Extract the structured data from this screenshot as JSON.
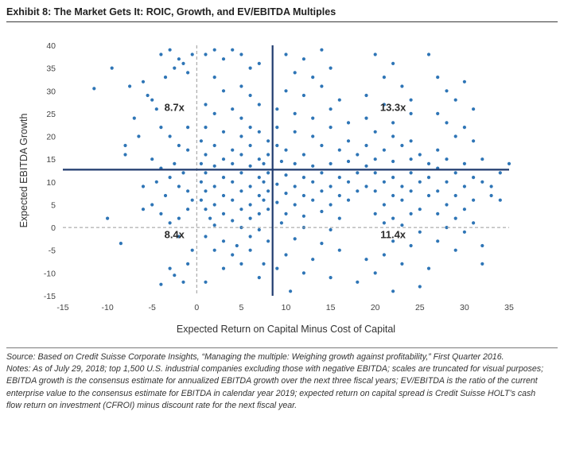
{
  "header": {
    "title": "Exhibit 8: The Market Gets It: ROIC, Growth, and EV/EBITDA Multiples"
  },
  "chart_data": {
    "type": "scatter",
    "title": "Exhibit 8: The Market Gets It: ROIC, Growth, and EV/EBITDA Multiples",
    "xlabel": "Expected Return on Capital Minus Cost of Capital",
    "ylabel": "Expected EBITDA Growth",
    "xlim": [
      -15,
      35
    ],
    "ylim": [
      -15,
      40
    ],
    "x_ticks": [
      "-15",
      "-10",
      "-5",
      "0",
      "5",
      "10",
      "15",
      "20",
      "25",
      "30",
      "35"
    ],
    "y_ticks": [
      "40",
      "35",
      "30",
      "25",
      "20",
      "15",
      "10",
      "5",
      "0",
      "-5",
      "-10",
      "-15"
    ],
    "grid": false,
    "point_color": "#2e75b6",
    "line_color": "#1f3a6e",
    "median_x": 8.5,
    "median_y": 12.7,
    "zero_reference_lines": true,
    "quadrants": [
      {
        "label": "8.7x",
        "x": -2.5,
        "y": 26.5
      },
      {
        "label": "13.3x",
        "x": 22,
        "y": 26.5
      },
      {
        "label": "8.4x",
        "x": -2.5,
        "y": -1.5
      },
      {
        "label": "11.4x",
        "x": 22,
        "y": -1.5
      }
    ],
    "series": [
      {
        "name": "U.S. industrial companies",
        "points": [
          [
            -11.5,
            30.5
          ],
          [
            -9.5,
            35
          ],
          [
            -10,
            2
          ],
          [
            -8,
            18
          ],
          [
            -8,
            16
          ],
          [
            -7.5,
            31
          ],
          [
            -7,
            24
          ],
          [
            -6.5,
            20
          ],
          [
            -6,
            32
          ],
          [
            -5.5,
            29
          ],
          [
            -5,
            28
          ],
          [
            -4.5,
            26
          ],
          [
            -4,
            38
          ],
          [
            -3.5,
            33
          ],
          [
            -3,
            39
          ],
          [
            -2.5,
            35
          ],
          [
            -2,
            37
          ],
          [
            -1.5,
            36
          ],
          [
            -1,
            34
          ],
          [
            -0.5,
            38
          ],
          [
            -4,
            22
          ],
          [
            -3,
            20
          ],
          [
            -2,
            18
          ],
          [
            -1,
            17
          ],
          [
            -5,
            15
          ],
          [
            -4,
            13
          ],
          [
            -3,
            11
          ],
          [
            -2,
            9
          ],
          [
            -1,
            8
          ],
          [
            -5,
            5
          ],
          [
            -4,
            3
          ],
          [
            -3,
            1
          ],
          [
            -2,
            2
          ],
          [
            -1,
            4
          ],
          [
            -0.5,
            6
          ],
          [
            -6,
            9
          ],
          [
            -6,
            4
          ],
          [
            -3,
            -9
          ],
          [
            -2.5,
            -10.5
          ],
          [
            -1,
            -8
          ],
          [
            -0.5,
            -5
          ],
          [
            -8.5,
            -3.5
          ],
          [
            -1.5,
            -12
          ],
          [
            -4,
            -12.5
          ],
          [
            -2,
            -2
          ],
          [
            -1.5,
            12
          ],
          [
            -3.5,
            7
          ],
          [
            -4.5,
            10
          ],
          [
            -2.5,
            14
          ],
          [
            -1,
            22
          ],
          [
            1,
            38
          ],
          [
            2,
            39
          ],
          [
            3,
            37
          ],
          [
            4,
            39
          ],
          [
            5,
            38
          ],
          [
            6,
            35
          ],
          [
            7,
            36
          ],
          [
            2,
            33
          ],
          [
            3,
            30
          ],
          [
            5,
            31
          ],
          [
            6,
            29
          ],
          [
            1,
            27
          ],
          [
            2,
            25
          ],
          [
            4,
            26
          ],
          [
            5,
            24
          ],
          [
            7,
            27
          ],
          [
            1,
            22
          ],
          [
            3,
            21
          ],
          [
            5,
            20
          ],
          [
            6,
            22
          ],
          [
            7,
            21
          ],
          [
            0.5,
            19
          ],
          [
            2,
            18
          ],
          [
            4,
            17
          ],
          [
            6,
            18
          ],
          [
            8,
            19
          ],
          [
            1,
            16
          ],
          [
            3,
            15
          ],
          [
            5,
            16
          ],
          [
            7,
            15
          ],
          [
            8,
            16
          ],
          [
            0.5,
            14
          ],
          [
            2,
            13.5
          ],
          [
            4,
            14
          ],
          [
            6,
            13.5
          ],
          [
            7.5,
            14
          ],
          [
            1,
            12
          ],
          [
            3,
            11
          ],
          [
            5,
            12
          ],
          [
            7,
            11
          ],
          [
            8,
            12
          ],
          [
            0.5,
            10
          ],
          [
            2,
            9
          ],
          [
            4,
            10
          ],
          [
            6,
            9
          ],
          [
            7.5,
            10
          ],
          [
            1,
            8
          ],
          [
            3,
            7
          ],
          [
            5,
            8
          ],
          [
            7,
            7
          ],
          [
            8,
            8
          ],
          [
            0.5,
            6
          ],
          [
            2,
            5
          ],
          [
            4,
            6
          ],
          [
            6,
            5
          ],
          [
            7.5,
            6
          ],
          [
            1,
            4
          ],
          [
            3,
            3
          ],
          [
            5,
            4
          ],
          [
            7,
            3
          ],
          [
            8,
            4
          ],
          [
            1.5,
            2
          ],
          [
            4,
            1.5
          ],
          [
            6,
            2
          ],
          [
            2,
            0.5
          ],
          [
            5,
            0
          ],
          [
            7,
            -0.5
          ],
          [
            1,
            -2
          ],
          [
            3,
            -3
          ],
          [
            6,
            -2
          ],
          [
            2,
            -5
          ],
          [
            4,
            -6
          ],
          [
            5,
            -8
          ],
          [
            3,
            -9
          ],
          [
            7,
            -11
          ],
          [
            1,
            -12
          ],
          [
            6,
            -5
          ],
          [
            8,
            -3
          ],
          [
            7.5,
            -8
          ],
          [
            4.5,
            -4
          ],
          [
            10,
            38
          ],
          [
            12,
            37
          ],
          [
            14,
            39
          ],
          [
            11,
            34
          ],
          [
            13,
            33
          ],
          [
            15,
            35
          ],
          [
            10,
            30
          ],
          [
            12,
            29
          ],
          [
            14,
            31
          ],
          [
            16,
            28
          ],
          [
            9,
            26
          ],
          [
            11,
            25
          ],
          [
            13,
            24
          ],
          [
            15,
            26
          ],
          [
            17,
            23
          ],
          [
            9,
            22
          ],
          [
            11,
            21
          ],
          [
            13,
            20
          ],
          [
            15,
            22
          ],
          [
            17,
            19
          ],
          [
            9,
            18
          ],
          [
            10,
            17
          ],
          [
            12,
            16
          ],
          [
            14,
            18
          ],
          [
            16,
            17
          ],
          [
            18,
            16
          ],
          [
            9.5,
            14.5
          ],
          [
            11,
            14
          ],
          [
            13,
            13.5
          ],
          [
            15,
            14
          ],
          [
            17,
            14.5
          ],
          [
            19,
            13.5
          ],
          [
            10,
            11.5
          ],
          [
            12,
            11
          ],
          [
            14,
            12
          ],
          [
            16,
            11
          ],
          [
            18,
            12
          ],
          [
            9,
            9.5
          ],
          [
            11,
            9
          ],
          [
            13,
            10
          ],
          [
            15,
            9
          ],
          [
            17,
            10
          ],
          [
            19,
            9
          ],
          [
            10,
            7.5
          ],
          [
            12,
            7
          ],
          [
            14,
            8
          ],
          [
            16,
            7
          ],
          [
            18,
            8
          ],
          [
            9,
            5.5
          ],
          [
            11,
            5
          ],
          [
            13,
            6
          ],
          [
            15,
            5
          ],
          [
            17,
            6
          ],
          [
            10,
            3
          ],
          [
            12,
            2.5
          ],
          [
            14,
            3.5
          ],
          [
            16,
            2
          ],
          [
            9.5,
            1
          ],
          [
            12,
            0
          ],
          [
            15,
            -0.5
          ],
          [
            11,
            -2.5
          ],
          [
            14,
            -3.5
          ],
          [
            10,
            -6
          ],
          [
            13,
            -7
          ],
          [
            16,
            -5
          ],
          [
            9,
            -9
          ],
          [
            12,
            -10
          ],
          [
            15,
            -11
          ],
          [
            18,
            -12
          ],
          [
            10.5,
            -14
          ],
          [
            20,
            38
          ],
          [
            22,
            36
          ],
          [
            21,
            33
          ],
          [
            23,
            31
          ],
          [
            19,
            29
          ],
          [
            21,
            27
          ],
          [
            24,
            28
          ],
          [
            19,
            24
          ],
          [
            22,
            23
          ],
          [
            24,
            25
          ],
          [
            20,
            21
          ],
          [
            22,
            20
          ],
          [
            24,
            19
          ],
          [
            19,
            18
          ],
          [
            21,
            17
          ],
          [
            23,
            18
          ],
          [
            25,
            16
          ],
          [
            20,
            15
          ],
          [
            22,
            14.5
          ],
          [
            24,
            15
          ],
          [
            26,
            14
          ],
          [
            20,
            12
          ],
          [
            22,
            11
          ],
          [
            24,
            12
          ],
          [
            26,
            11
          ],
          [
            21,
            10
          ],
          [
            23,
            9
          ],
          [
            25,
            10
          ],
          [
            20,
            8
          ],
          [
            22,
            7
          ],
          [
            24,
            8
          ],
          [
            26,
            7
          ],
          [
            21,
            5
          ],
          [
            23,
            6
          ],
          [
            25,
            4
          ],
          [
            20,
            3
          ],
          [
            22,
            2
          ],
          [
            24,
            3
          ],
          [
            21,
            1
          ],
          [
            23,
            0.5
          ],
          [
            25,
            -1
          ],
          [
            22,
            -3
          ],
          [
            24,
            -4
          ],
          [
            21,
            -6
          ],
          [
            23,
            -8
          ],
          [
            20,
            -10
          ],
          [
            25,
            -13
          ],
          [
            22,
            -14
          ],
          [
            19,
            -7
          ],
          [
            26,
            -9
          ],
          [
            27,
            33
          ],
          [
            28,
            30
          ],
          [
            30,
            32
          ],
          [
            29,
            28
          ],
          [
            31,
            26
          ],
          [
            27,
            25
          ],
          [
            28,
            23
          ],
          [
            30,
            22
          ],
          [
            29,
            20
          ],
          [
            31,
            19
          ],
          [
            27,
            17
          ],
          [
            28,
            15
          ],
          [
            30,
            14
          ],
          [
            32,
            15
          ],
          [
            27,
            13
          ],
          [
            29,
            12
          ],
          [
            31,
            11
          ],
          [
            28,
            10
          ],
          [
            30,
            9
          ],
          [
            32,
            10
          ],
          [
            27,
            8
          ],
          [
            29,
            7
          ],
          [
            31,
            6
          ],
          [
            33,
            7
          ],
          [
            28,
            5
          ],
          [
            30,
            4
          ],
          [
            27,
            3
          ],
          [
            29,
            2
          ],
          [
            31,
            1
          ],
          [
            28,
            0
          ],
          [
            30,
            -1
          ],
          [
            27,
            -3
          ],
          [
            29,
            -5
          ],
          [
            32,
            -4
          ],
          [
            34,
            12
          ],
          [
            33,
            9
          ],
          [
            34,
            6
          ],
          [
            35,
            14
          ],
          [
            32,
            -8
          ],
          [
            26,
            38
          ]
        ]
      }
    ]
  },
  "footer": {
    "source": "Source: Based on Credit Suisse Corporate Insights, “Managing the multiple: Weighing growth against profitability,” First Quarter 2016.",
    "notes": "Notes: As of July 29, 2018; top 1,500 U.S. industrial companies excluding those with negative EBITDA; scales are truncated for visual purposes; EBITDA growth is the consensus estimate for annualized EBITDA growth over the next three fiscal years; EV/EBITDA is the ratio of the current enterprise value to the consensus estimate for EBITDA in calendar year 2019; expected return on capital spread is Credit Suisse HOLT’s cash flow return on investment (CFROI) minus discount rate for the next fiscal year."
  }
}
